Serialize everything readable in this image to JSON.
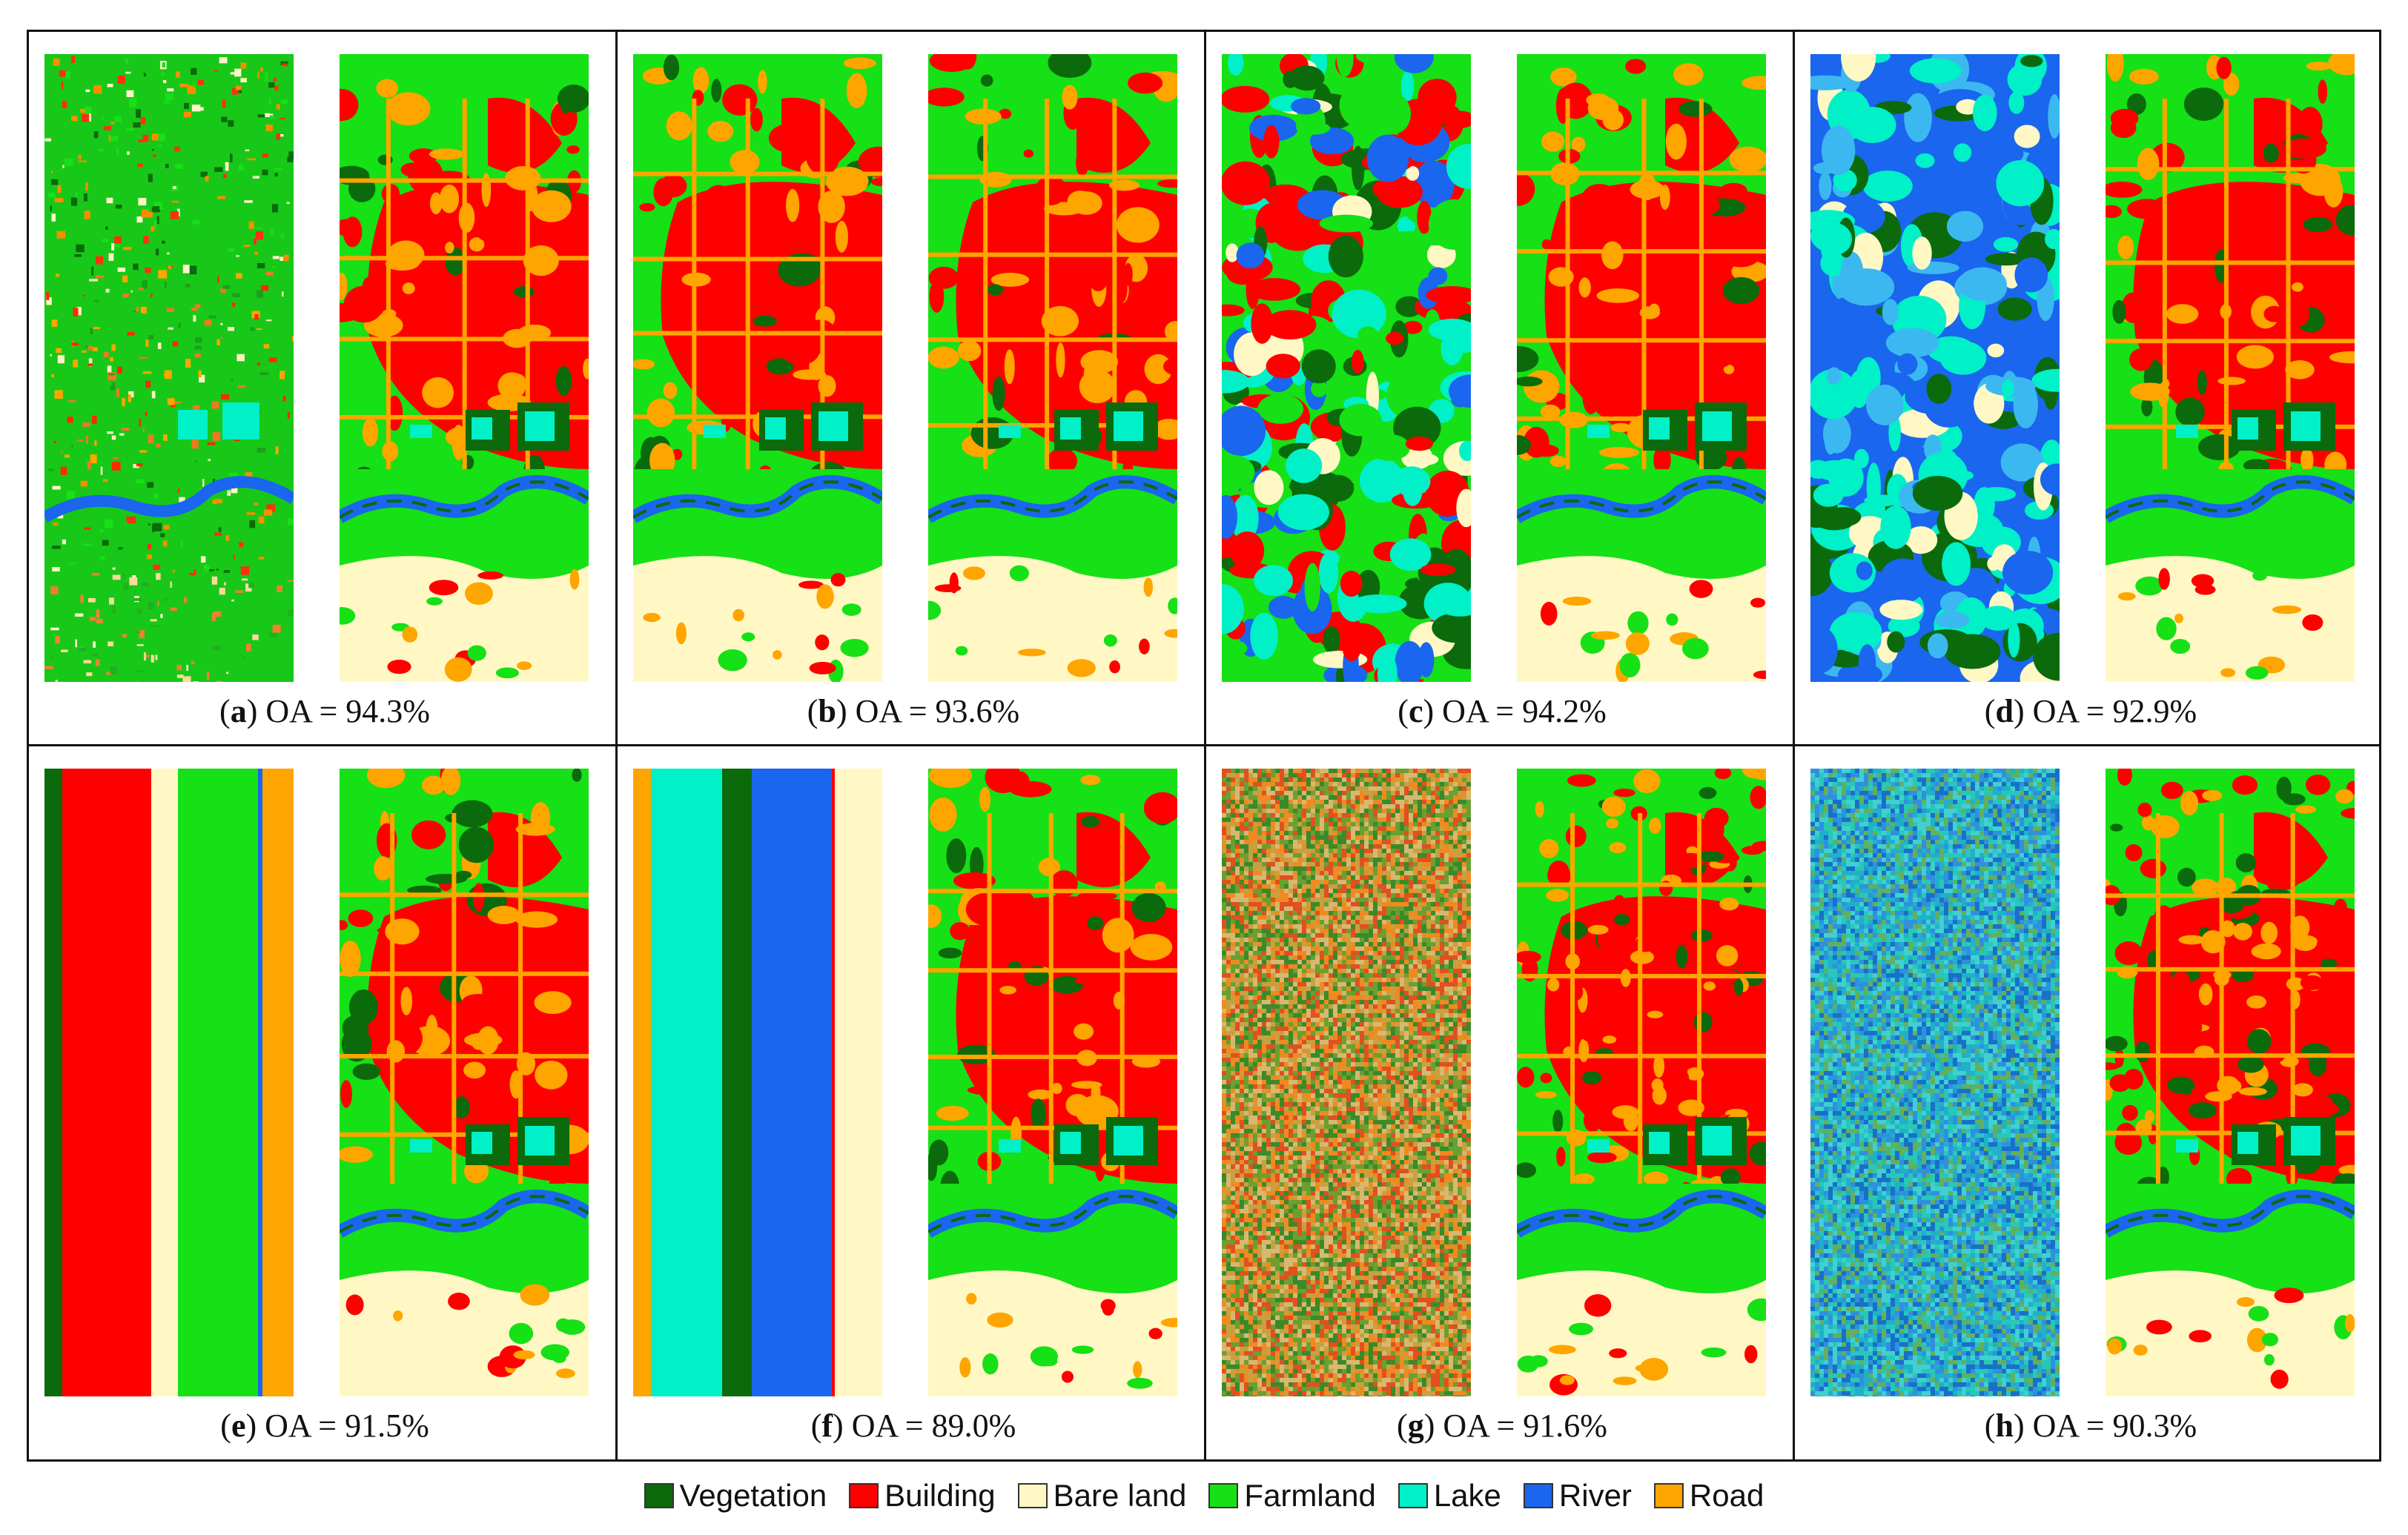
{
  "colors": {
    "vegetation": "#0b6a0b",
    "building": "#ff0000",
    "bare_land": "#fff8c4",
    "farmland": "#16e016",
    "lake": "#00f0c8",
    "river": "#1a66ee",
    "road": "#ffa500"
  },
  "panels": [
    {
      "letter": "a",
      "label": "OA = 94.3%",
      "oa": 94.3,
      "left_pattern": "real-image"
    },
    {
      "letter": "b",
      "label": "OA = 93.6%",
      "oa": 93.6,
      "left_pattern": "classification-map"
    },
    {
      "letter": "c",
      "label": "OA = 94.2%",
      "oa": 94.2,
      "left_pattern": "random-blobs-vegetation-building-farmland"
    },
    {
      "letter": "d",
      "label": "OA = 92.9%",
      "oa": 92.9,
      "left_pattern": "random-blobs-lake-river"
    },
    {
      "letter": "e",
      "label": "OA = 91.5%",
      "oa": 91.5,
      "left_pattern": "vertical-stripes-vegetation-building-bareland-farmland-road"
    },
    {
      "letter": "f",
      "label": "OA = 89.0%",
      "oa": 89.0,
      "left_pattern": "vertical-stripes-road-lake-vegetation-river-bareland"
    },
    {
      "letter": "g",
      "label": "OA = 91.6%",
      "oa": 91.6,
      "left_pattern": "noise-warm"
    },
    {
      "letter": "h",
      "label": "OA = 90.3%",
      "oa": 90.3,
      "left_pattern": "noise-cool"
    }
  ],
  "legend": [
    {
      "label": "Vegetation",
      "color": "#0b6a0b"
    },
    {
      "label": "Building",
      "color": "#ff0000"
    },
    {
      "label": "Bare land",
      "color": "#fff8c4"
    },
    {
      "label": "Farmland",
      "color": "#16e016"
    },
    {
      "label": "Lake",
      "color": "#00f0c8"
    },
    {
      "label": "River",
      "color": "#1a66ee"
    },
    {
      "label": "Road",
      "color": "#ffa500"
    }
  ]
}
